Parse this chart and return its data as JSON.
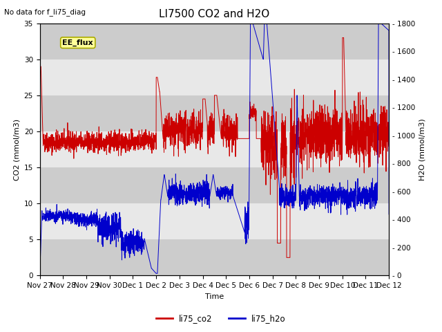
{
  "title": "LI7500 CO2 and H2O",
  "top_left_text": "No data for f_li75_diag",
  "box_label": "EE_flux",
  "xlabel": "Time",
  "ylabel_left": "CO2 (mmol/m3)",
  "ylabel_right": "H2O (mmol/m3)",
  "ylim_left": [
    0,
    35
  ],
  "ylim_right": [
    0,
    1800
  ],
  "co2_color": "#cc0000",
  "h2o_color": "#0000cc",
  "background_color": "#ffffff",
  "plot_bg_color": "#e8e8e8",
  "x_labels": [
    "Nov 27",
    "Nov 28",
    "Nov 29",
    "Nov 30",
    "Dec 1",
    "Dec 2",
    "Dec 3",
    "Dec 4",
    "Dec 5",
    "Dec 6",
    "Dec 7",
    "Dec 8",
    "Dec 9",
    "Dec 10",
    "Dec 11",
    "Dec 12"
  ],
  "yticks_left": [
    0,
    5,
    10,
    15,
    20,
    25,
    30,
    35
  ],
  "yticks_right": [
    0,
    200,
    400,
    600,
    800,
    1000,
    1200,
    1400,
    1600,
    1800
  ],
  "legend_co2": "li75_co2",
  "legend_h2o": "li75_h2o",
  "title_fontsize": 11,
  "label_fontsize": 8,
  "tick_fontsize": 7.5
}
